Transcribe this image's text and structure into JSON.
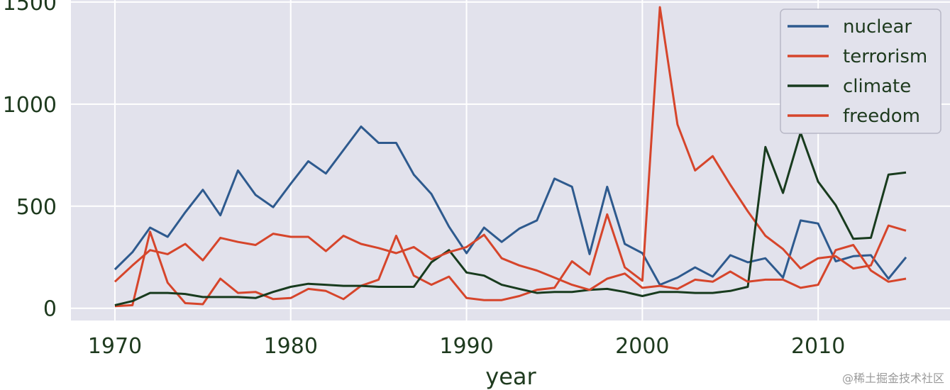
{
  "chart_data": {
    "type": "line",
    "xlabel": "year",
    "ylabel": "",
    "xlim": [
      1967.5,
      2017.5
    ],
    "ylim": [
      -60,
      1510
    ],
    "xticks": [
      1970,
      1980,
      1990,
      2000,
      2010
    ],
    "yticks": [
      0,
      500,
      1000,
      1500
    ],
    "grid": true,
    "legend_position": "top-right",
    "x": [
      1970,
      1971,
      1972,
      1973,
      1974,
      1975,
      1976,
      1977,
      1978,
      1979,
      1980,
      1981,
      1982,
      1983,
      1984,
      1985,
      1986,
      1987,
      1988,
      1989,
      1990,
      1991,
      1992,
      1993,
      1994,
      1995,
      1996,
      1997,
      1998,
      1999,
      2000,
      2001,
      2002,
      2003,
      2004,
      2005,
      2006,
      2007,
      2008,
      2009,
      2010,
      2011,
      2012,
      2013,
      2014,
      2015
    ],
    "series": [
      {
        "name": "nuclear",
        "color": "#2e5a8e",
        "values": [
          190,
          275,
          395,
          350,
          470,
          580,
          455,
          675,
          555,
          495,
          610,
          720,
          660,
          775,
          890,
          810,
          810,
          655,
          560,
          400,
          270,
          395,
          325,
          390,
          430,
          635,
          595,
          265,
          595,
          315,
          270,
          115,
          150,
          200,
          155,
          260,
          225,
          245,
          150,
          430,
          415,
          230,
          255,
          260,
          145,
          250
        ]
      },
      {
        "name": "terrorism",
        "color": "#d6452b",
        "values": [
          10,
          15,
          375,
          125,
          25,
          20,
          145,
          75,
          80,
          45,
          50,
          95,
          85,
          45,
          110,
          140,
          355,
          160,
          115,
          155,
          50,
          40,
          40,
          60,
          90,
          100,
          230,
          165,
          460,
          200,
          135,
          1475,
          900,
          675,
          745,
          605,
          475,
          355,
          290,
          195,
          245,
          255,
          195,
          210,
          405,
          380
        ]
      },
      {
        "name": "climate",
        "color": "#183b1e",
        "values": [
          15,
          35,
          75,
          75,
          70,
          55,
          55,
          55,
          50,
          80,
          105,
          120,
          115,
          110,
          110,
          105,
          105,
          105,
          225,
          285,
          175,
          160,
          115,
          95,
          75,
          80,
          80,
          90,
          95,
          80,
          60,
          80,
          80,
          75,
          75,
          85,
          105,
          790,
          565,
          860,
          620,
          505,
          340,
          345,
          655,
          665
        ]
      },
      {
        "name": "freedom",
        "color": "#d6452b",
        "values": [
          130,
          210,
          285,
          265,
          315,
          235,
          345,
          325,
          310,
          365,
          350,
          350,
          280,
          355,
          315,
          295,
          270,
          300,
          240,
          275,
          300,
          360,
          245,
          210,
          185,
          150,
          115,
          90,
          145,
          170,
          100,
          110,
          95,
          140,
          130,
          180,
          130,
          140,
          140,
          100,
          115,
          285,
          310,
          185,
          130,
          145
        ]
      }
    ]
  },
  "watermark": "@稀土掘金技术社区"
}
